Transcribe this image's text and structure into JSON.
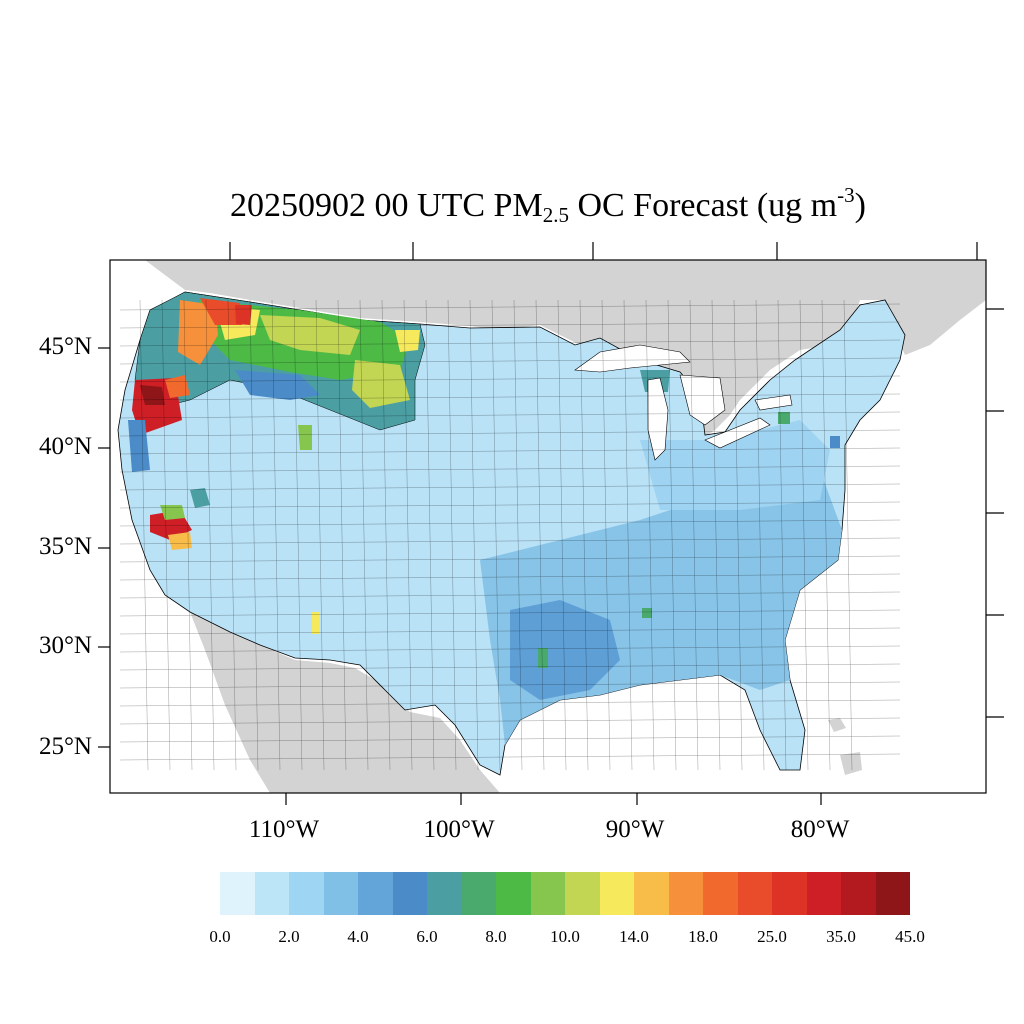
{
  "title": {
    "prefix": "20250902 00 UTC PM",
    "subscript": "2.5",
    "middle": " OC Forecast (ug m",
    "superscript": "-3",
    "suffix": ")"
  },
  "map": {
    "projection": "lambert-conformal",
    "region": "contiguous United States",
    "land_color": "#d3d3d3",
    "water_color": "#ffffff",
    "border_color": "#000000"
  },
  "lat_labels": [
    "45°N",
    "40°N",
    "35°N",
    "30°N",
    "25°N"
  ],
  "lon_labels": [
    "110°W",
    "100°W",
    "90°W",
    "80°W"
  ],
  "colorbar": {
    "colors": [
      "#dff3fc",
      "#bde5f8",
      "#9dd5f3",
      "#80bfe6",
      "#63a4d9",
      "#4a8bc8",
      "#4b9fa3",
      "#4aaa6e",
      "#4cba45",
      "#86c54e",
      "#c3d653",
      "#f6e95c",
      "#f8bd48",
      "#f6903b",
      "#f2692d",
      "#e84c2a",
      "#dd3326",
      "#cf1f26",
      "#b21a20",
      "#8e1518"
    ],
    "labels": [
      "0.0",
      "2.0",
      "4.0",
      "6.0",
      "8.0",
      "10.0",
      "14.0",
      "18.0",
      "25.0",
      "35.0",
      "45.0"
    ]
  }
}
